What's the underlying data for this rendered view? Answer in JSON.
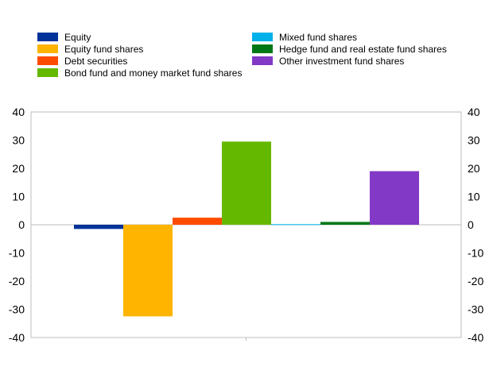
{
  "chart_data": {
    "type": "bar",
    "categories": [
      ""
    ],
    "series": [
      {
        "name": "Equity",
        "values": [
          -1.5
        ],
        "color": "#003299"
      },
      {
        "name": "Equity fund shares",
        "values": [
          -32.5
        ],
        "color": "#FFB400"
      },
      {
        "name": "Debt securities",
        "values": [
          2.5
        ],
        "color": "#FF4B00"
      },
      {
        "name": "Bond fund and money market fund shares",
        "values": [
          29.5
        ],
        "color": "#65B800"
      },
      {
        "name": "Mixed fund shares",
        "values": [
          0.2
        ],
        "color": "#00B1EA"
      },
      {
        "name": "Hedge fund and real estate fund shares",
        "values": [
          1.0
        ],
        "color": "#007816"
      },
      {
        "name": "Other investment fund shares",
        "values": [
          19.0
        ],
        "color": "#8139C6"
      }
    ],
    "ylim": [
      -40,
      40
    ],
    "yticks": [
      "40",
      "30",
      "20",
      "10",
      "0",
      "-10",
      "-20",
      "-30",
      "-40"
    ],
    "legend_position": "top",
    "grid": false
  }
}
